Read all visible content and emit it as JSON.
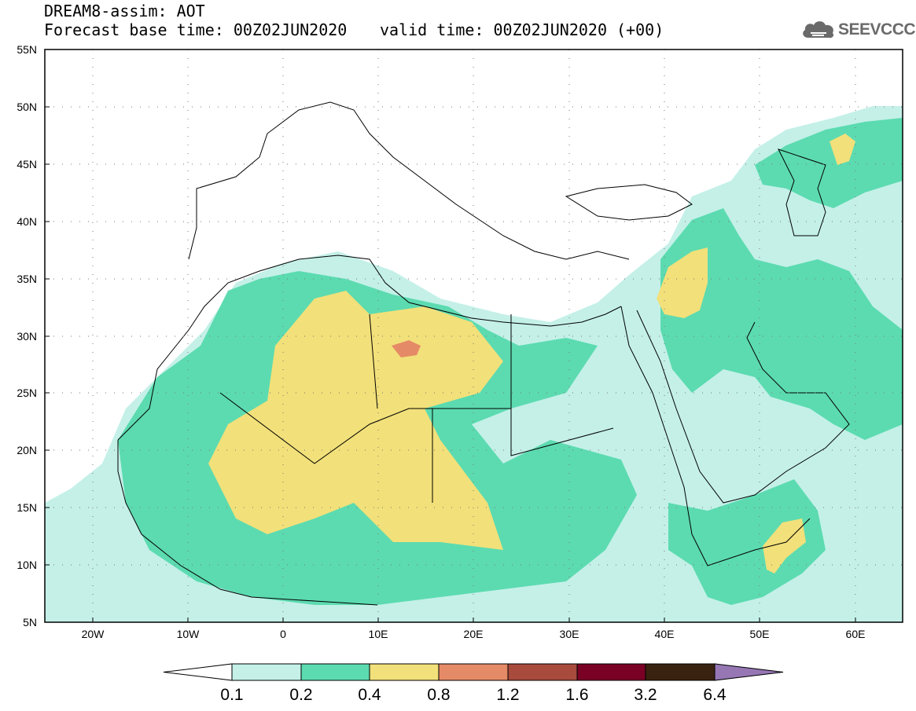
{
  "header": {
    "title_line1": "DREAM8-assim: AOT",
    "title_line2": "Forecast base time: 00Z02JUN2020",
    "valid_time": "valid time: 00Z02JUN2020 (+00)"
  },
  "logo": {
    "text": "SEEVCCC",
    "icon": "cloud-icon"
  },
  "map": {
    "variable": "AOT",
    "lon_range": [
      -25,
      65
    ],
    "lat_range": [
      5,
      55
    ],
    "lat_labels": [
      "55N",
      "50N",
      "45N",
      "40N",
      "35N",
      "30N",
      "25N",
      "20N",
      "15N",
      "10N",
      "5N"
    ],
    "lon_labels": [
      "20W",
      "10W",
      "0",
      "10E",
      "20E",
      "30E",
      "40E",
      "50E",
      "60E"
    ],
    "grid": "dotted"
  },
  "colorbar": {
    "labels": [
      "0.1",
      "0.2",
      "0.4",
      "0.8",
      "1.2",
      "1.6",
      "3.2",
      "6.4"
    ],
    "colors": [
      "#ffffff",
      "#c4f0e8",
      "#5cdbb0",
      "#f2e07a",
      "#e58a66",
      "#a84a3c",
      "#7a0025",
      "#3a2210",
      "#9677b4"
    ]
  }
}
